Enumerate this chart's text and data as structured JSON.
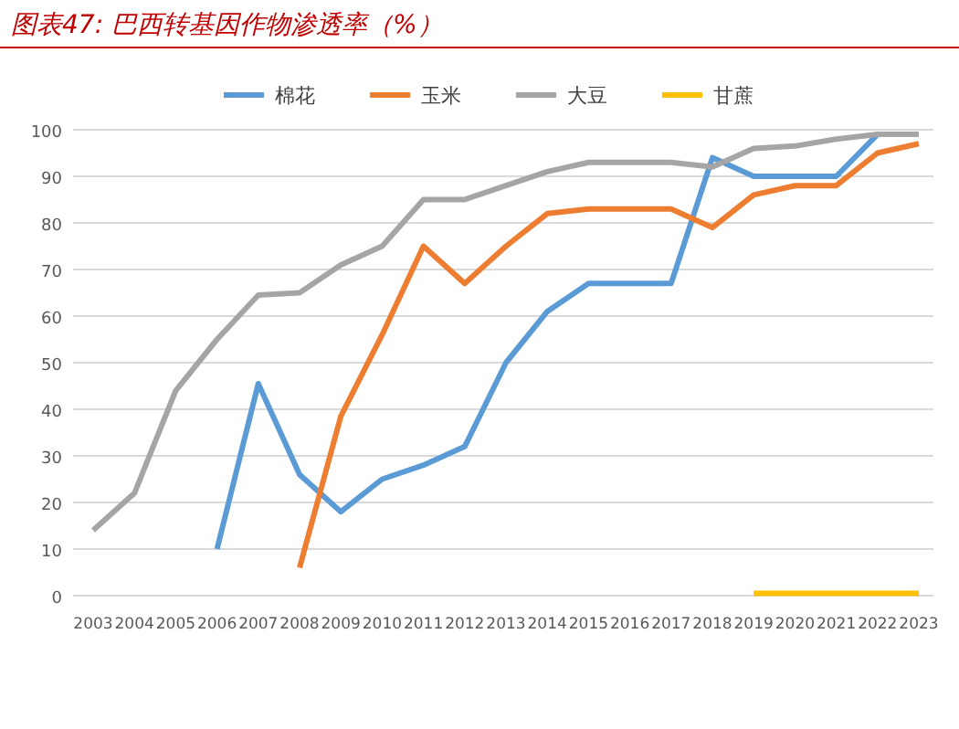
{
  "chart_data": {
    "type": "line",
    "title": "图表47: 巴西转基因作物渗透率（%）",
    "categories": [
      "2003",
      "2004",
      "2005",
      "2006",
      "2007",
      "2008",
      "2009",
      "2010",
      "2011",
      "2012",
      "2013",
      "2014",
      "2015",
      "2016",
      "2017",
      "2018",
      "2019",
      "2020",
      "2021",
      "2022",
      "2023"
    ],
    "series": [
      {
        "name": "棉花",
        "color": "#5b9bd5",
        "values": [
          null,
          null,
          null,
          10,
          45.5,
          26,
          18,
          25,
          28,
          32,
          50,
          61,
          67,
          67,
          67,
          94,
          90,
          90,
          90,
          99,
          99
        ]
      },
      {
        "name": "玉米",
        "color": "#ed7d31",
        "values": [
          null,
          null,
          null,
          null,
          null,
          6,
          38.5,
          56,
          75,
          67,
          75,
          82,
          83,
          83,
          83,
          79,
          86,
          88,
          88,
          95,
          97
        ]
      },
      {
        "name": "大豆",
        "color": "#a5a5a5",
        "values": [
          14,
          22,
          44,
          55,
          64.5,
          65,
          71,
          75,
          85,
          85,
          88,
          91,
          93,
          93,
          93,
          92,
          96,
          96.5,
          98,
          99,
          99
        ]
      },
      {
        "name": "甘蔗",
        "color": "#ffc000",
        "values": [
          null,
          null,
          null,
          null,
          null,
          null,
          null,
          null,
          null,
          null,
          null,
          null,
          null,
          null,
          null,
          null,
          0.5,
          0.5,
          0.5,
          0.5,
          0.5
        ]
      }
    ],
    "ylim": [
      0,
      100
    ],
    "yticks": [
      0,
      10,
      20,
      30,
      40,
      50,
      60,
      70,
      80,
      90,
      100
    ],
    "grid": "y",
    "legend": "top",
    "marker": "none",
    "line_style": "solid"
  }
}
